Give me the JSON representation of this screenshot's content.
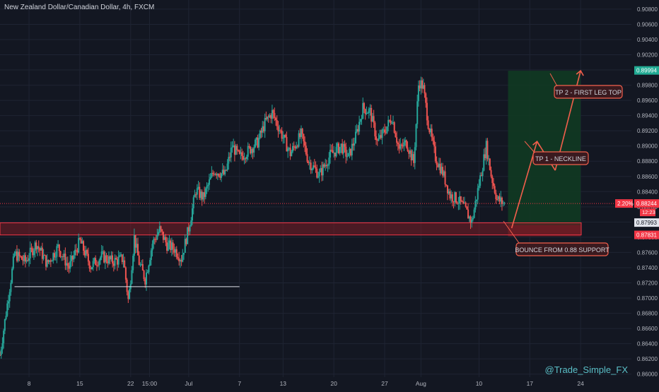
{
  "header": {
    "title": "New Zealand Dollar/Canadian Dollar, 4h, FXCM"
  },
  "watermark": "@Trade_Simple_FX",
  "colors": {
    "background": "#131722",
    "grid": "#1f2433",
    "up": "#26a69a",
    "down": "#ef5350",
    "text": "#d1d4dc",
    "zone_fill": "#7a1e26",
    "zone_border": "#f23645",
    "profit_fill": "#113a22",
    "arrow": "#f25f4c",
    "callout_fill": "#3a1a1f",
    "callout_border": "#f25f4c",
    "tag_green": "#22ab94",
    "tag_red": "#f23645",
    "watermark": "#5bc0c8"
  },
  "chart_data": {
    "type": "candlestick",
    "title": "New Zealand Dollar/Canadian Dollar, 4h, FXCM",
    "ylim": [
      0.86,
      0.91
    ],
    "y_ticks": [
      "0.90800",
      "0.90600",
      "0.90400",
      "0.90200",
      "0.90000",
      "0.89800",
      "0.89600",
      "0.89400",
      "0.89200",
      "0.89000",
      "0.88800",
      "0.88600",
      "0.88400",
      "0.88200",
      "0.88000",
      "0.87800",
      "0.87600",
      "0.87400",
      "0.87200",
      "0.87000",
      "0.86800",
      "0.86600",
      "0.86400",
      "0.86200",
      "0.86000"
    ],
    "x_ticks": [
      "8",
      "15",
      "22",
      "15:00",
      "Jul",
      "7",
      "13",
      "20",
      "27",
      "Aug",
      "10",
      "17",
      "24"
    ],
    "x_tick_days": [
      8,
      15,
      22,
      24.6,
      30,
      37,
      43,
      50,
      57,
      62,
      70,
      77,
      84
    ],
    "x_range_days": [
      4,
      91
    ],
    "series": [
      {
        "points": [
          [
            4.0,
            0.8625
          ],
          [
            5.0,
            0.8692
          ],
          [
            6.0,
            0.8758
          ],
          [
            7.5,
            0.8748
          ],
          [
            9.0,
            0.8772
          ],
          [
            10.5,
            0.8745
          ],
          [
            12.0,
            0.8767
          ],
          [
            13.5,
            0.874
          ],
          [
            15.0,
            0.8775
          ],
          [
            16.5,
            0.8742
          ],
          [
            18.0,
            0.8755
          ],
          [
            19.5,
            0.8748
          ],
          [
            21.0,
            0.8752
          ],
          [
            21.7,
            0.8695
          ],
          [
            22.5,
            0.878
          ],
          [
            23.2,
            0.8745
          ],
          [
            24.0,
            0.8725
          ],
          [
            25.0,
            0.8772
          ],
          [
            26.0,
            0.879
          ],
          [
            27.0,
            0.877
          ],
          [
            28.0,
            0.8765
          ],
          [
            29.0,
            0.8752
          ],
          [
            30.0,
            0.8792
          ],
          [
            31.0,
            0.8842
          ],
          [
            32.0,
            0.8832
          ],
          [
            33.5,
            0.8868
          ],
          [
            35.0,
            0.8862
          ],
          [
            36.0,
            0.89
          ],
          [
            37.0,
            0.8885
          ],
          [
            38.0,
            0.8892
          ],
          [
            39.5,
            0.8905
          ],
          [
            40.5,
            0.893
          ],
          [
            41.5,
            0.8944
          ],
          [
            42.5,
            0.8922
          ],
          [
            44.0,
            0.889
          ],
          [
            45.5,
            0.8915
          ],
          [
            46.5,
            0.888
          ],
          [
            48.0,
            0.8862
          ],
          [
            49.5,
            0.8888
          ],
          [
            51.0,
            0.89
          ],
          [
            52.0,
            0.8885
          ],
          [
            53.0,
            0.8912
          ],
          [
            54.0,
            0.895
          ],
          [
            55.0,
            0.8945
          ],
          [
            56.0,
            0.8905
          ],
          [
            57.0,
            0.892
          ],
          [
            58.0,
            0.8938
          ],
          [
            59.0,
            0.8895
          ],
          [
            60.0,
            0.8905
          ],
          [
            61.0,
            0.8878
          ],
          [
            61.7,
            0.8985
          ],
          [
            62.3,
            0.8978
          ],
          [
            63.0,
            0.893
          ],
          [
            64.0,
            0.8885
          ],
          [
            65.0,
            0.8865
          ],
          [
            66.0,
            0.8835
          ],
          [
            67.0,
            0.883
          ],
          [
            68.0,
            0.8818
          ],
          [
            69.0,
            0.88
          ],
          [
            70.0,
            0.885
          ],
          [
            71.0,
            0.89
          ],
          [
            71.7,
            0.886
          ],
          [
            72.5,
            0.883
          ],
          [
            73.5,
            0.8824
          ]
        ]
      }
    ],
    "support_zone": {
      "low": 0.8783,
      "high": 0.8799,
      "label": "BOUNCE FROM 0.88 SUPPORT"
    },
    "profit_zone": {
      "low": 0.8783,
      "high": 0.8999,
      "x_start": 74,
      "x_end": 84
    },
    "projection": [
      {
        "x": 74.5,
        "y": 0.8792
      },
      {
        "x": 78.0,
        "y": 0.8906,
        "label": "TP 1 - NECKLINE"
      },
      {
        "x": 80.5,
        "y": 0.8868
      },
      {
        "x": 84.0,
        "y": 0.8999,
        "label": "TP 2 - FIRST LEG TOP"
      }
    ],
    "range_low_line": {
      "value": 0.8715,
      "x_start": 6,
      "x_end": 37
    },
    "price_tags": [
      {
        "value": "0.89994",
        "color": "green"
      },
      {
        "value": "0.88244",
        "color": "red",
        "prefix": "2.20%",
        "sub": "12:23"
      },
      {
        "value": "0.87993",
        "color": "white"
      },
      {
        "value": "0.87831",
        "color": "red"
      }
    ]
  }
}
